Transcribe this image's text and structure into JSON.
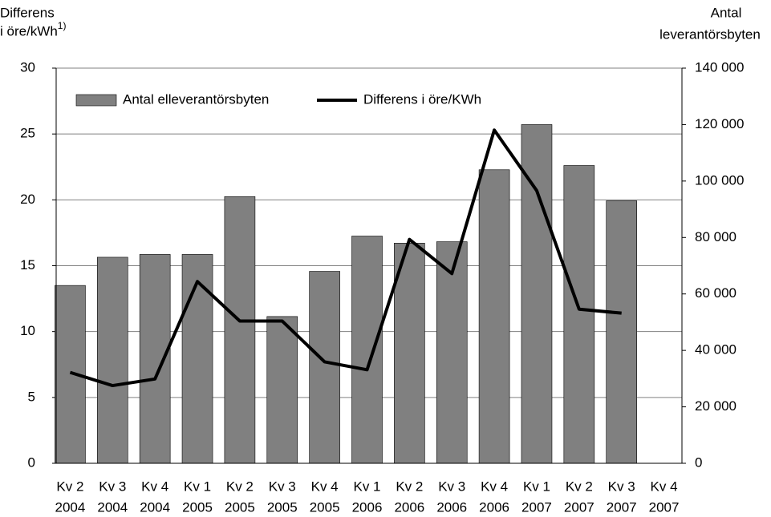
{
  "chart_data": {
    "type": "bar_line",
    "y_label": [
      "Differens",
      "i öre/kWh"
    ],
    "y_label_note": "1)",
    "y2_label": [
      "Antal",
      "leverantörsbyten"
    ],
    "categories": [
      [
        "Kv 2",
        "2004"
      ],
      [
        "Kv 3",
        "2004"
      ],
      [
        "Kv 4",
        "2004"
      ],
      [
        "Kv 1",
        "2005"
      ],
      [
        "Kv 2",
        "2005"
      ],
      [
        "Kv 3",
        "2005"
      ],
      [
        "Kv 4",
        "2005"
      ],
      [
        "Kv 1",
        "2006"
      ],
      [
        "Kv 2",
        "2006"
      ],
      [
        "Kv 3",
        "2006"
      ],
      [
        "Kv 4",
        "2006"
      ],
      [
        "Kv 1",
        "2007"
      ],
      [
        "Kv 2",
        "2007"
      ],
      [
        "Kv 3",
        "2007"
      ],
      [
        "Kv 4",
        "2007"
      ]
    ],
    "series": [
      {
        "name": "Antal elleverantörsbyten",
        "type": "bar",
        "axis": "y2",
        "color": "#808080",
        "values": [
          63000,
          73000,
          74000,
          74000,
          94500,
          52000,
          68000,
          80500,
          78000,
          78500,
          104000,
          120000,
          105500,
          93000,
          null
        ]
      },
      {
        "name": "Differens i öre/KWh",
        "type": "line",
        "axis": "y",
        "color": "#000000",
        "values": [
          6.9,
          5.9,
          6.4,
          13.8,
          10.8,
          10.8,
          7.7,
          7.1,
          17.0,
          14.4,
          25.3,
          20.7,
          11.7,
          11.4,
          null
        ]
      }
    ],
    "ylim": [
      0,
      30
    ],
    "yticks": [
      0,
      5,
      10,
      15,
      20,
      25,
      30
    ],
    "y2lim": [
      0,
      140000
    ],
    "y2ticks": [
      {
        "value": 0,
        "label": "0"
      },
      {
        "value": 20000,
        "label": "20 000"
      },
      {
        "value": 40000,
        "label": "40 000"
      },
      {
        "value": 60000,
        "label": "60 000"
      },
      {
        "value": 80000,
        "label": "80 000"
      },
      {
        "value": 100000,
        "label": "100 000"
      },
      {
        "value": 120000,
        "label": "120 000"
      },
      {
        "value": 140000,
        "label": "140 000"
      }
    ],
    "grid": true,
    "legend": "top-left"
  }
}
